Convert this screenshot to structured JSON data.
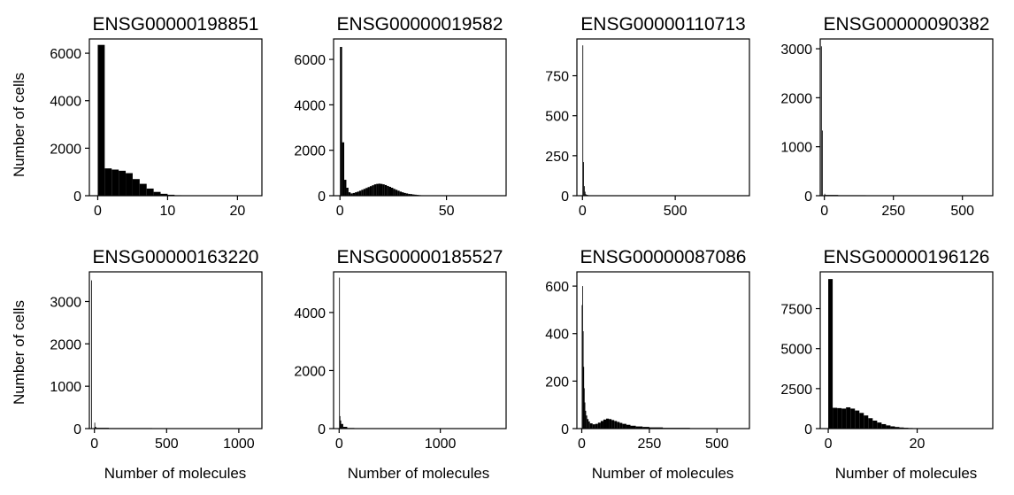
{
  "figure": {
    "ylabel": "Number of cells",
    "xlabel": "Number of molecules"
  },
  "chart_data": [
    {
      "type": "bar",
      "title": "ENSG00000198851",
      "xlim": [
        -1.2,
        23.5
      ],
      "ylim": [
        0,
        6600
      ],
      "xticks": [
        0,
        10,
        20
      ],
      "xtick_labels": [
        "0",
        "10",
        "20"
      ],
      "yticks": [
        0,
        2000,
        4000,
        6000
      ],
      "ytick_labels": [
        "0",
        "2000",
        "4000",
        "6000"
      ],
      "bins": [
        [
          0,
          1,
          6350
        ],
        [
          1,
          2,
          1150
        ],
        [
          2,
          3,
          1100
        ],
        [
          3,
          4,
          1050
        ],
        [
          4,
          5,
          950
        ],
        [
          5,
          6,
          700
        ],
        [
          6,
          7,
          500
        ],
        [
          7,
          8,
          300
        ],
        [
          8,
          9,
          160
        ],
        [
          9,
          10,
          80
        ],
        [
          10,
          11,
          40
        ],
        [
          11,
          12,
          20
        ],
        [
          12,
          13,
          10
        ],
        [
          13,
          14,
          5
        ]
      ]
    },
    {
      "type": "bar",
      "title": "ENSG00000019582",
      "xlim": [
        -3,
        78
      ],
      "ylim": [
        0,
        6900
      ],
      "xticks": [
        0,
        50
      ],
      "xtick_labels": [
        "0",
        "50"
      ],
      "yticks": [
        0,
        2000,
        4000,
        6000
      ],
      "ytick_labels": [
        "0",
        "2000",
        "4000",
        "6000"
      ],
      "bins": [
        [
          0,
          1,
          6550
        ],
        [
          1,
          2,
          2350
        ],
        [
          2,
          3,
          700
        ],
        [
          3,
          4,
          350
        ],
        [
          4,
          5,
          150
        ],
        [
          5,
          6,
          100
        ],
        [
          6,
          7,
          120
        ],
        [
          7,
          8,
          150
        ],
        [
          8,
          9,
          180
        ],
        [
          9,
          10,
          220
        ],
        [
          10,
          11,
          260
        ],
        [
          11,
          12,
          300
        ],
        [
          12,
          13,
          340
        ],
        [
          13,
          14,
          380
        ],
        [
          14,
          15,
          420
        ],
        [
          15,
          16,
          460
        ],
        [
          16,
          17,
          500
        ],
        [
          17,
          18,
          520
        ],
        [
          18,
          19,
          530
        ],
        [
          19,
          20,
          520
        ],
        [
          20,
          21,
          500
        ],
        [
          21,
          22,
          470
        ],
        [
          22,
          23,
          430
        ],
        [
          23,
          24,
          390
        ],
        [
          24,
          25,
          350
        ],
        [
          25,
          26,
          300
        ],
        [
          26,
          27,
          260
        ],
        [
          27,
          28,
          220
        ],
        [
          28,
          29,
          180
        ],
        [
          29,
          30,
          150
        ],
        [
          30,
          31,
          120
        ],
        [
          31,
          32,
          100
        ],
        [
          32,
          33,
          80
        ],
        [
          33,
          34,
          70
        ],
        [
          34,
          35,
          55
        ],
        [
          35,
          36,
          45
        ],
        [
          36,
          37,
          35
        ],
        [
          37,
          38,
          25
        ],
        [
          38,
          39,
          20
        ],
        [
          39,
          40,
          15
        ],
        [
          40,
          42,
          10
        ],
        [
          42,
          45,
          5
        ]
      ]
    },
    {
      "type": "bar",
      "title": "ENSG00000110713",
      "xlim": [
        -30,
        900
      ],
      "ylim": [
        0,
        980
      ],
      "xticks": [
        0,
        500
      ],
      "xtick_labels": [
        "0",
        "500"
      ],
      "yticks": [
        0,
        250,
        500,
        750
      ],
      "ytick_labels": [
        "0",
        "250",
        "500",
        "750"
      ],
      "bins": [
        [
          0,
          4,
          940
        ],
        [
          4,
          8,
          210
        ],
        [
          8,
          12,
          60
        ],
        [
          12,
          16,
          25
        ],
        [
          16,
          20,
          10
        ],
        [
          20,
          30,
          5
        ]
      ]
    },
    {
      "type": "bar",
      "title": "ENSG00000090382",
      "xlim": [
        -15,
        610
      ],
      "ylim": [
        0,
        3200
      ],
      "xticks": [
        0,
        250,
        500
      ],
      "xtick_labels": [
        "0",
        "250",
        "500"
      ],
      "yticks": [
        0,
        1000,
        2000,
        3000
      ],
      "ytick_labels": [
        "0",
        "1000",
        "2000",
        "3000"
      ],
      "bins": [
        [
          -12,
          -10,
          3050
        ],
        [
          -8,
          -6,
          1330
        ],
        [
          0,
          2,
          40
        ],
        [
          2,
          50,
          15
        ],
        [
          50,
          150,
          10
        ],
        [
          150,
          300,
          8
        ],
        [
          300,
          450,
          5
        ],
        [
          450,
          600,
          3
        ]
      ]
    },
    {
      "type": "bar",
      "title": "ENSG00000163220",
      "xlim": [
        -35,
        1160
      ],
      "ylim": [
        0,
        3700
      ],
      "xticks": [
        0,
        500,
        1000
      ],
      "xtick_labels": [
        "0",
        "500",
        "1000"
      ],
      "yticks": [
        0,
        1000,
        2000,
        3000
      ],
      "ytick_labels": [
        "0",
        "1000",
        "2000",
        "3000"
      ],
      "bins": [
        [
          -22,
          -18,
          3500
        ],
        [
          0,
          4,
          140
        ],
        [
          4,
          12,
          40
        ],
        [
          12,
          100,
          18
        ],
        [
          100,
          400,
          12
        ],
        [
          400,
          800,
          8
        ],
        [
          800,
          1100,
          5
        ]
      ]
    },
    {
      "type": "bar",
      "title": "ENSG00000185527",
      "xlim": [
        -55,
        1650
      ],
      "ylim": [
        0,
        5400
      ],
      "xticks": [
        0,
        1000
      ],
      "xtick_labels": [
        "0",
        "1000"
      ],
      "yticks": [
        0,
        2000,
        4000
      ],
      "ytick_labels": [
        "0",
        "2000",
        "4000"
      ],
      "bins": [
        [
          0,
          5,
          5200
        ],
        [
          5,
          10,
          430
        ],
        [
          10,
          20,
          280
        ],
        [
          20,
          40,
          160
        ],
        [
          40,
          80,
          60
        ],
        [
          80,
          150,
          20
        ],
        [
          150,
          400,
          8
        ]
      ]
    },
    {
      "type": "bar",
      "title": "ENSG00000087086",
      "xlim": [
        -18,
        620
      ],
      "ylim": [
        0,
        660
      ],
      "xticks": [
        0,
        250,
        500
      ],
      "xtick_labels": [
        "0",
        "250",
        "500"
      ],
      "yticks": [
        0,
        200,
        400,
        600
      ],
      "ytick_labels": [
        "0",
        "200",
        "400",
        "600"
      ],
      "bins": [
        [
          0,
          2,
          520
        ],
        [
          2,
          4,
          600
        ],
        [
          4,
          6,
          410
        ],
        [
          6,
          8,
          260
        ],
        [
          8,
          10,
          170
        ],
        [
          10,
          13,
          110
        ],
        [
          13,
          16,
          75
        ],
        [
          16,
          20,
          55
        ],
        [
          20,
          25,
          40
        ],
        [
          25,
          30,
          30
        ],
        [
          30,
          40,
          22
        ],
        [
          40,
          50,
          18
        ],
        [
          50,
          60,
          20
        ],
        [
          60,
          70,
          25
        ],
        [
          70,
          80,
          32
        ],
        [
          80,
          90,
          38
        ],
        [
          90,
          100,
          42
        ],
        [
          100,
          110,
          40
        ],
        [
          110,
          120,
          36
        ],
        [
          120,
          130,
          32
        ],
        [
          130,
          140,
          28
        ],
        [
          140,
          150,
          24
        ],
        [
          150,
          165,
          20
        ],
        [
          165,
          180,
          16
        ],
        [
          180,
          200,
          12
        ],
        [
          200,
          225,
          9
        ],
        [
          225,
          250,
          7
        ],
        [
          250,
          300,
          5
        ],
        [
          300,
          400,
          3
        ],
        [
          400,
          500,
          2
        ]
      ]
    },
    {
      "type": "bar",
      "title": "ENSG00000196126",
      "xlim": [
        -1.8,
        37
      ],
      "ylim": [
        0,
        9800
      ],
      "xticks": [
        0,
        20
      ],
      "xtick_labels": [
        "0",
        "20"
      ],
      "yticks": [
        0,
        2500,
        5000,
        7500
      ],
      "ytick_labels": [
        "0",
        "2500",
        "5000",
        "7500"
      ],
      "bins": [
        [
          0,
          1,
          9350
        ],
        [
          1,
          2,
          1300
        ],
        [
          2,
          3,
          1280
        ],
        [
          3,
          4,
          1250
        ],
        [
          4,
          5,
          1330
        ],
        [
          5,
          6,
          1250
        ],
        [
          6,
          7,
          1130
        ],
        [
          7,
          8,
          980
        ],
        [
          8,
          9,
          820
        ],
        [
          9,
          10,
          650
        ],
        [
          10,
          11,
          500
        ],
        [
          11,
          12,
          380
        ],
        [
          12,
          13,
          280
        ],
        [
          13,
          14,
          200
        ],
        [
          14,
          15,
          140
        ],
        [
          15,
          16,
          100
        ],
        [
          16,
          17,
          70
        ],
        [
          17,
          18,
          50
        ],
        [
          18,
          19,
          35
        ],
        [
          19,
          20,
          25
        ],
        [
          20,
          22,
          15
        ],
        [
          22,
          25,
          8
        ],
        [
          25,
          30,
          4
        ]
      ]
    }
  ]
}
